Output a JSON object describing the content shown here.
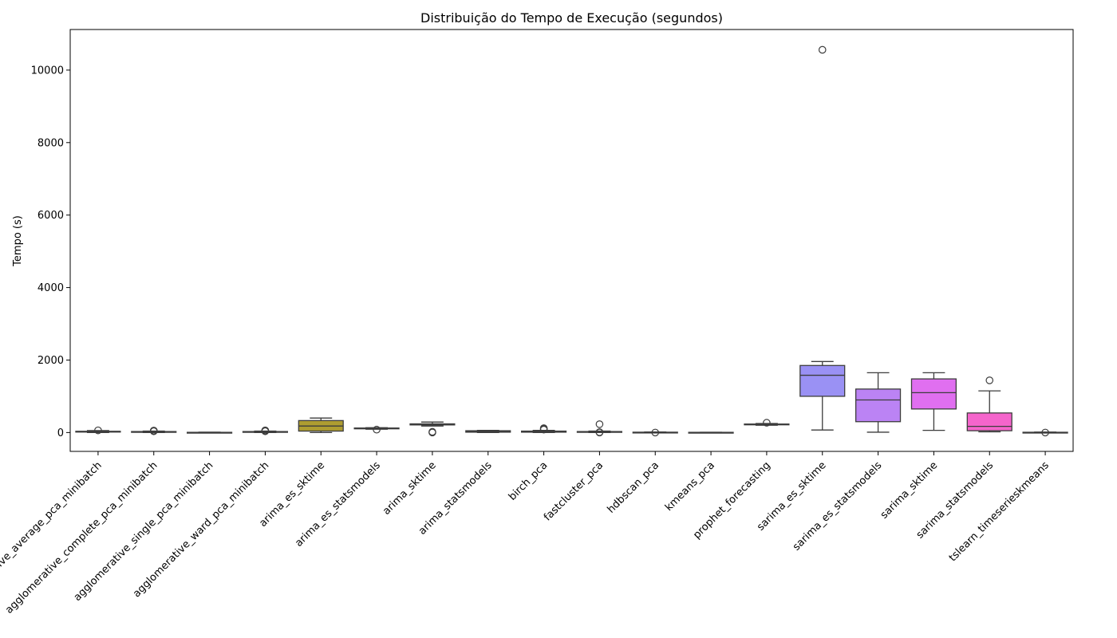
{
  "chart_data": {
    "type": "box",
    "title": "Distribuição do Tempo de Execução (segundos)",
    "xlabel": "",
    "ylabel": "Tempo (s)",
    "ylim": [
      -520,
      11120
    ],
    "yticks": [
      0,
      2000,
      4000,
      6000,
      8000,
      10000
    ],
    "grid": false,
    "legend": "none",
    "boxes": [
      {
        "category": "agglomerative_average_pca_minibatch",
        "color": "#f77189",
        "whisker_low": 0,
        "q1": 15,
        "median": 25,
        "q3": 35,
        "whisker_high": 55,
        "outliers": [
          60
        ]
      },
      {
        "category": "agglomerative_complete_pca_minibatch",
        "color": "#f7754f",
        "whisker_low": 0,
        "q1": 10,
        "median": 20,
        "q3": 28,
        "whisker_high": 40,
        "outliers": [
          35,
          45,
          55
        ]
      },
      {
        "category": "agglomerative_single_pca_minibatch",
        "color": "#dc8932",
        "whisker_low": 0,
        "q1": 2,
        "median": 4,
        "q3": 6,
        "whisker_high": 10,
        "outliers": []
      },
      {
        "category": "agglomerative_ward_pca_minibatch",
        "color": "#c39532",
        "whisker_low": 0,
        "q1": 10,
        "median": 18,
        "q3": 28,
        "whisker_high": 40,
        "outliers": [
          35,
          45,
          60
        ]
      },
      {
        "category": "arima_es_sktime",
        "color": "#ae9d31",
        "whisker_low": 0,
        "q1": 40,
        "median": 180,
        "q3": 330,
        "whisker_high": 400,
        "outliers": []
      },
      {
        "category": "arima_es_statsmodels",
        "color": "#97a431",
        "whisker_low": 90,
        "q1": 105,
        "median": 115,
        "q3": 125,
        "whisker_high": 135,
        "outliers": [
          80
        ]
      },
      {
        "category": "arima_sktime",
        "color": "#77ab31",
        "whisker_low": 180,
        "q1": 210,
        "median": 225,
        "q3": 240,
        "whisker_high": 290,
        "outliers": [
          20,
          0
        ]
      },
      {
        "category": "arima_statsmodels",
        "color": "#33b07a",
        "whisker_low": 0,
        "q1": 10,
        "median": 30,
        "q3": 50,
        "whisker_high": 60,
        "outliers": []
      },
      {
        "category": "birch_pca",
        "color": "#35ad9c",
        "whisker_low": 0,
        "q1": 10,
        "median": 20,
        "q3": 40,
        "whisker_high": 60,
        "outliers": [
          80,
          100,
          120
        ]
      },
      {
        "category": "fastcluster_pca",
        "color": "#36ada4",
        "whisker_low": 0,
        "q1": 10,
        "median": 18,
        "q3": 28,
        "whisker_high": 40,
        "outliers": [
          230,
          10,
          0
        ]
      },
      {
        "category": "hdbscan_pca",
        "color": "#38aaac",
        "whisker_low": 0,
        "q1": 4,
        "median": 6,
        "q3": 10,
        "whisker_high": 15,
        "outliers": [
          0
        ]
      },
      {
        "category": "kmeans_pca",
        "color": "#3ba3ec",
        "whisker_low": 0,
        "q1": 2,
        "median": 4,
        "q3": 6,
        "whisker_high": 8,
        "outliers": []
      },
      {
        "category": "prophet_forecasting",
        "color": "#6e9bf4",
        "whisker_low": 200,
        "q1": 215,
        "median": 225,
        "q3": 235,
        "whisker_high": 250,
        "outliers": [
          270
        ]
      },
      {
        "category": "sarima_es_sktime",
        "color": "#9a91f4",
        "whisker_low": 70,
        "q1": 1000,
        "median": 1580,
        "q3": 1850,
        "whisker_high": 1960,
        "outliers": [
          10560
        ]
      },
      {
        "category": "sarima_es_statsmodels",
        "color": "#bb83f4",
        "whisker_low": 10,
        "q1": 300,
        "median": 900,
        "q3": 1200,
        "whisker_high": 1650,
        "outliers": []
      },
      {
        "category": "sarima_sktime",
        "color": "#e06ff0",
        "whisker_low": 60,
        "q1": 650,
        "median": 1100,
        "q3": 1480,
        "whisker_high": 1650,
        "outliers": []
      },
      {
        "category": "sarima_statsmodels",
        "color": "#f565cc",
        "whisker_low": 20,
        "q1": 50,
        "median": 170,
        "q3": 540,
        "whisker_high": 1150,
        "outliers": [
          1440
        ]
      },
      {
        "category": "tslearn_timeserieskmeans",
        "color": "#f66bad",
        "whisker_low": 0,
        "q1": 2,
        "median": 5,
        "q3": 8,
        "whisker_high": 12,
        "outliers": [
          0
        ]
      }
    ]
  }
}
